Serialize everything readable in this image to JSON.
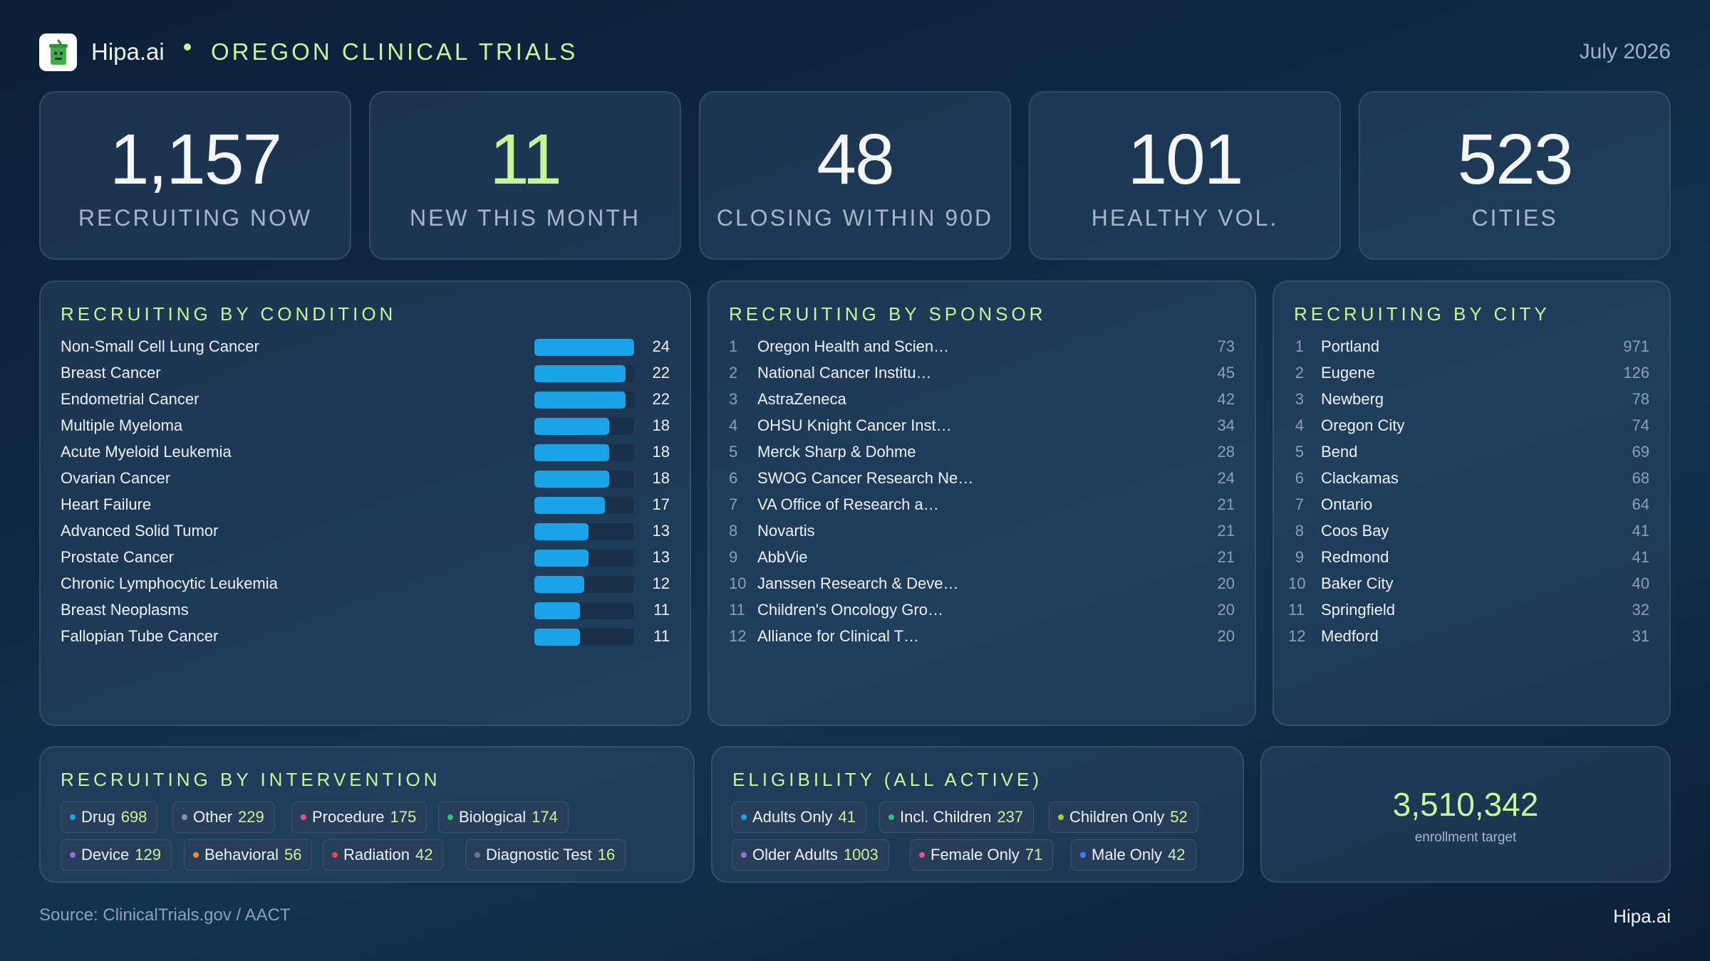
{
  "header": {
    "brand": "Hipa.ai",
    "title": "OREGON CLINICAL TRIALS",
    "date": "July 2026"
  },
  "kpis": [
    {
      "value": "1,157",
      "label": "RECRUITING NOW",
      "accent": false
    },
    {
      "value": "11",
      "label": "NEW THIS MONTH",
      "accent": true
    },
    {
      "value": "48",
      "label": "CLOSING WITHIN 90D",
      "accent": false
    },
    {
      "value": "101",
      "label": "HEALTHY VOL.",
      "accent": false
    },
    {
      "value": "523",
      "label": "CITIES",
      "accent": false
    }
  ],
  "by_condition": {
    "title": "RECRUITING BY CONDITION",
    "max": 24,
    "items": [
      {
        "name": "Non-Small Cell Lung Cancer",
        "count": 24
      },
      {
        "name": "Breast Cancer",
        "count": 22
      },
      {
        "name": "Endometrial Cancer",
        "count": 22
      },
      {
        "name": "Multiple Myeloma",
        "count": 18
      },
      {
        "name": "Acute Myeloid Leukemia",
        "count": 18
      },
      {
        "name": "Ovarian Cancer",
        "count": 18
      },
      {
        "name": "Heart Failure",
        "count": 17
      },
      {
        "name": "Advanced Solid Tumor",
        "count": 13
      },
      {
        "name": "Prostate Cancer",
        "count": 13
      },
      {
        "name": "Chronic Lymphocytic Leukemia",
        "count": 12
      },
      {
        "name": "Breast Neoplasms",
        "count": 11
      },
      {
        "name": "Fallopian Tube Cancer",
        "count": 11
      }
    ]
  },
  "by_sponsor": {
    "title": "RECRUITING BY SPONSOR",
    "items": [
      {
        "rank": "1",
        "name": "Oregon Health and Scien…",
        "count": "73"
      },
      {
        "rank": "2",
        "name": "National Cancer Institu…",
        "count": "45"
      },
      {
        "rank": "3",
        "name": "AstraZeneca",
        "count": "42"
      },
      {
        "rank": "4",
        "name": "OHSU Knight Cancer Inst…",
        "count": "34"
      },
      {
        "rank": "5",
        "name": "Merck Sharp & Dohme",
        "count": "28"
      },
      {
        "rank": "6",
        "name": "SWOG Cancer Research Ne…",
        "count": "24"
      },
      {
        "rank": "7",
        "name": "VA Office of Research a…",
        "count": "21"
      },
      {
        "rank": "8",
        "name": "Novartis",
        "count": "21"
      },
      {
        "rank": "9",
        "name": "AbbVie",
        "count": "21"
      },
      {
        "rank": "10",
        "name": "Janssen Research & Deve…",
        "count": "20"
      },
      {
        "rank": "11",
        "name": "Children's Oncology Gro…",
        "count": "20"
      },
      {
        "rank": "12",
        "name": "Alliance for Clinical T…",
        "count": "20"
      }
    ]
  },
  "by_city": {
    "title": "RECRUITING BY CITY",
    "items": [
      {
        "rank": "1",
        "name": "Portland",
        "count": "971"
      },
      {
        "rank": "2",
        "name": "Eugene",
        "count": "126"
      },
      {
        "rank": "3",
        "name": "Newberg",
        "count": "78"
      },
      {
        "rank": "4",
        "name": "Oregon City",
        "count": "74"
      },
      {
        "rank": "5",
        "name": "Bend",
        "count": "69"
      },
      {
        "rank": "6",
        "name": "Clackamas",
        "count": "68"
      },
      {
        "rank": "7",
        "name": "Ontario",
        "count": "64"
      },
      {
        "rank": "8",
        "name": "Coos Bay",
        "count": "41"
      },
      {
        "rank": "9",
        "name": "Redmond",
        "count": "41"
      },
      {
        "rank": "10",
        "name": "Baker City",
        "count": "40"
      },
      {
        "rank": "11",
        "name": "Springfield",
        "count": "32"
      },
      {
        "rank": "12",
        "name": "Medford",
        "count": "31"
      }
    ]
  },
  "by_intervention": {
    "title": "RECRUITING BY INTERVENTION",
    "chips": [
      {
        "label": "Drug",
        "count": "698",
        "color": "#1aa3e6"
      },
      {
        "label": "Other",
        "count": "229",
        "color": "#8a96a6"
      },
      {
        "label": "Procedure",
        "count": "175",
        "color": "#e8508a"
      },
      {
        "label": "Biological",
        "count": "174",
        "color": "#2fc47a"
      },
      {
        "label": "Device",
        "count": "129",
        "color": "#9a6be6"
      },
      {
        "label": "Behavioral",
        "count": "56",
        "color": "#f08a2a"
      },
      {
        "label": "Radiation",
        "count": "42",
        "color": "#e84545"
      },
      {
        "label": "Diagnostic Test",
        "count": "16",
        "color": "#6e7a8a"
      }
    ]
  },
  "eligibility": {
    "title": "ELIGIBILITY (ALL ACTIVE)",
    "chips": [
      {
        "label": "Adults Only",
        "count": "41",
        "color": "#1aa3e6"
      },
      {
        "label": "Incl. Children",
        "count": "237",
        "color": "#2fc47a"
      },
      {
        "label": "Children Only",
        "count": "52",
        "color": "#9bd43a"
      },
      {
        "label": "Older Adults",
        "count": "1003",
        "color": "#9a6be6"
      },
      {
        "label": "Female Only",
        "count": "71",
        "color": "#e8508a"
      },
      {
        "label": "Male Only",
        "count": "42",
        "color": "#3b82f6"
      }
    ]
  },
  "enrollment": {
    "value": "3,510,342",
    "label": "enrollment target"
  },
  "footer": {
    "source": "Source: ClinicalTrials.gov /  AACT",
    "brand": "Hipa.ai"
  }
}
